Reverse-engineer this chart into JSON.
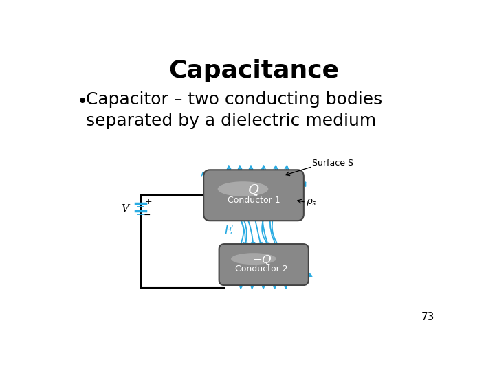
{
  "title": "Capacitance",
  "bullet_text": "Capacitor – two conducting bodies\nseparated by a dielectric medium",
  "page_number": "73",
  "background_color": "#ffffff",
  "title_fontsize": 26,
  "bullet_fontsize": 18,
  "conductor1_label": "Q",
  "conductor1_sublabel": "Conductor 1",
  "conductor2_label": "−Q",
  "conductor2_sublabel": "Conductor 2",
  "surface_label": "Surface S",
  "rho_label": "ρs",
  "E_label": "E",
  "V_label": "V",
  "arrow_color": "#29ABE2",
  "conductor_face": "#909090",
  "conductor_edge": "#555555",
  "line_color": "#000000"
}
